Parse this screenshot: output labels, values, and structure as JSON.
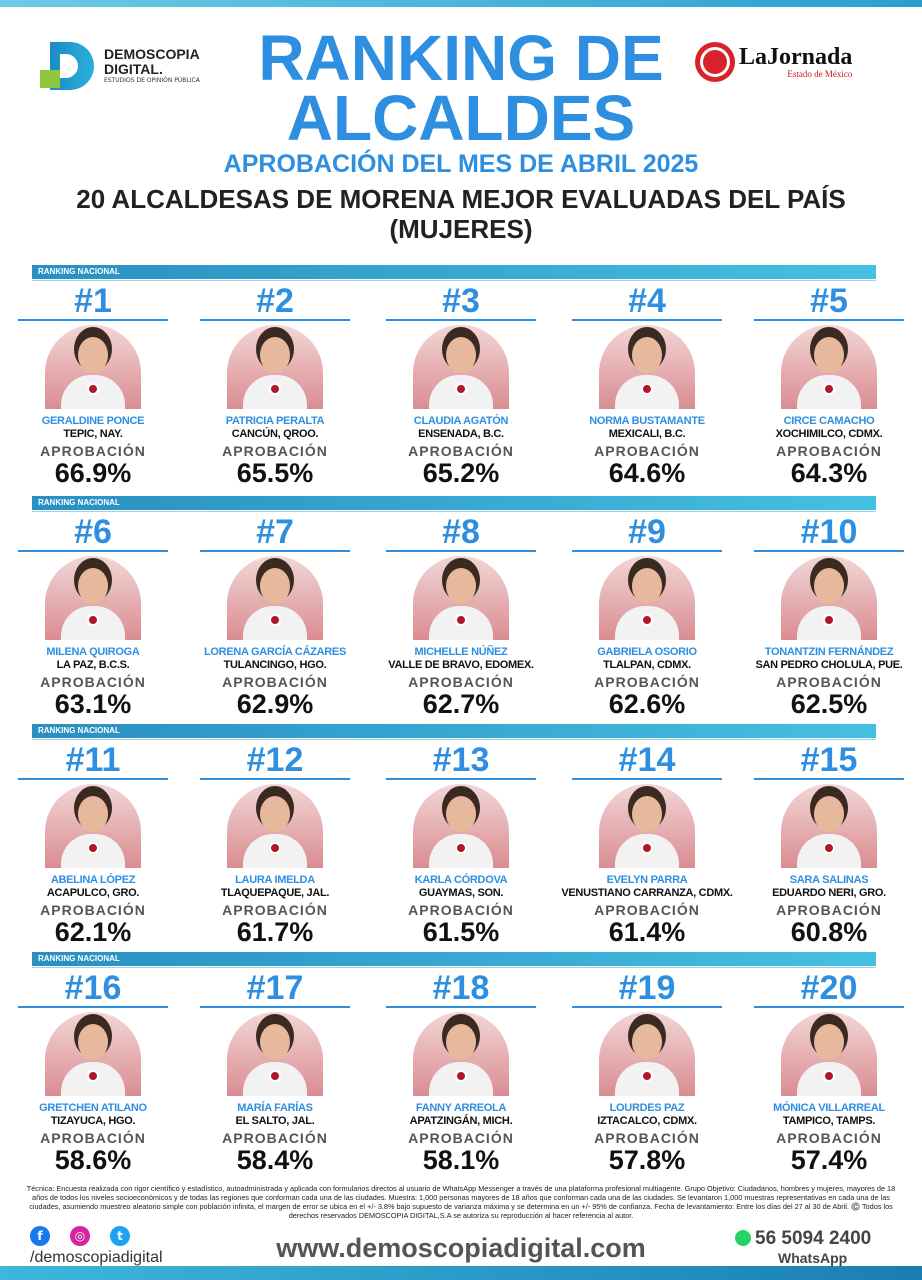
{
  "header": {
    "brand": "DEMOSCOPIA",
    "brand2": "DIGITAL.",
    "brand_sub": "ESTUDIOS DE OPINIÓN PÚBLICA",
    "title1": "RANKING DE",
    "title2": "ALCALDES",
    "month": "APROBACIÓN DEL MES DE ABRIL 2025",
    "subtitle1": "20 ALCALDESAS DE MORENA MEJOR EVALUADAS DEL PAÍS",
    "subtitle2": "(MUJERES)",
    "partner": "LaJornada",
    "partner_sub": "Estado de México"
  },
  "band_label": "RANKING NACIONAL",
  "approval_label": "APROBACIÓN",
  "ranking": [
    {
      "rank": "#1",
      "name": "GERALDINE PONCE",
      "city": "TEPIC, NAY.",
      "approval": "66.9%"
    },
    {
      "rank": "#2",
      "name": "PATRICIA PERALTA",
      "city": "CANCÚN, QROO.",
      "approval": "65.5%"
    },
    {
      "rank": "#3",
      "name": "CLAUDIA AGATÓN",
      "city": "ENSENADA, B.C.",
      "approval": "65.2%"
    },
    {
      "rank": "#4",
      "name": "NORMA BUSTAMANTE",
      "city": "MEXICALI, B.C.",
      "approval": "64.6%"
    },
    {
      "rank": "#5",
      "name": "CIRCE CAMACHO",
      "city": "XOCHIMILCO, CDMX.",
      "approval": "64.3%"
    },
    {
      "rank": "#6",
      "name": "MILENA QUIROGA",
      "city": "LA PAZ, B.C.S.",
      "approval": "63.1%"
    },
    {
      "rank": "#7",
      "name": "LORENA GARCÍA CÁZARES",
      "city": "TULANCINGO, HGO.",
      "approval": "62.9%"
    },
    {
      "rank": "#8",
      "name": "MICHELLE NÚÑEZ",
      "city": "VALLE DE BRAVO, EDOMEX.",
      "approval": "62.7%"
    },
    {
      "rank": "#9",
      "name": "GABRIELA OSORIO",
      "city": "TLALPAN, CDMX.",
      "approval": "62.6%"
    },
    {
      "rank": "#10",
      "name": "TONANTZIN FERNÁNDEZ",
      "city": "SAN PEDRO CHOLULA, PUE.",
      "approval": "62.5%"
    },
    {
      "rank": "#11",
      "name": "ABELINA LÓPEZ",
      "city": "ACAPULCO, GRO.",
      "approval": "62.1%"
    },
    {
      "rank": "#12",
      "name": "LAURA IMELDA",
      "city": "TLAQUEPAQUE, JAL.",
      "approval": "61.7%"
    },
    {
      "rank": "#13",
      "name": "KARLA CÓRDOVA",
      "city": "GUAYMAS, SON.",
      "approval": "61.5%"
    },
    {
      "rank": "#14",
      "name": "EVELYN PARRA",
      "city": "VENUSTIANO CARRANZA, CDMX.",
      "approval": "61.4%"
    },
    {
      "rank": "#15",
      "name": "SARA SALINAS",
      "city": "EDUARDO NERI, GRO.",
      "approval": "60.8%"
    },
    {
      "rank": "#16",
      "name": "GRETCHEN ATILANO",
      "city": "TIZAYUCA, HGO.",
      "approval": "58.6%"
    },
    {
      "rank": "#17",
      "name": "MARÍA FARÍAS",
      "city": "EL SALTO, JAL.",
      "approval": "58.4%"
    },
    {
      "rank": "#18",
      "name": "FANNY ARREOLA",
      "city": "APATZINGÁN, MICH.",
      "approval": "58.1%"
    },
    {
      "rank": "#19",
      "name": "LOURDES PAZ",
      "city": "IZTACALCO, CDMX.",
      "approval": "57.8%"
    },
    {
      "rank": "#20",
      "name": "MÓNICA VILLARREAL",
      "city": "TAMPICO, TAMPS.",
      "approval": "57.4%"
    }
  ],
  "footer": {
    "methodology": "Técnica: Encuesta realizada con rigor científico y estadístico, autoadministrada y aplicada con formularios directos al usuario de WhatsApp Messenger a través de una plataforma profesional multiagente. Grupo Objetivo: Ciudadanos, hombres y mujeres, mayores de 18 años de todos los niveles socioeconómicos y de todas las regiones que conforman cada una de las ciudades. Muestra: 1,000 personas mayores de 18 años que conforman cada una de las ciudades. Se levantaron 1,000 muestras representativas en cada una de las ciudades, asumiendo muestreo aleatorio simple con población infinita, el margen de error se ubica en el +/- 3.8% bajo supuesto de varianza máxima y se determina en un +/- 95% de confianza. Fecha de levantamiento: Entre los días del 27 al 30 de Abril. ©️ Todos los derechos reservados DEMOSCOPIA DIGITAL,S.A se autoriza su reproducción al hacer referencia al autor.",
    "handle": "/demoscopiadigital",
    "website": "www.demoscopiadigital.com",
    "phone": "56 5094 2400",
    "phone_label": "WhatsApp"
  },
  "colors": {
    "accent": "#2e8fe0",
    "band": "#2a8fc2",
    "pin": "#b0182a"
  }
}
